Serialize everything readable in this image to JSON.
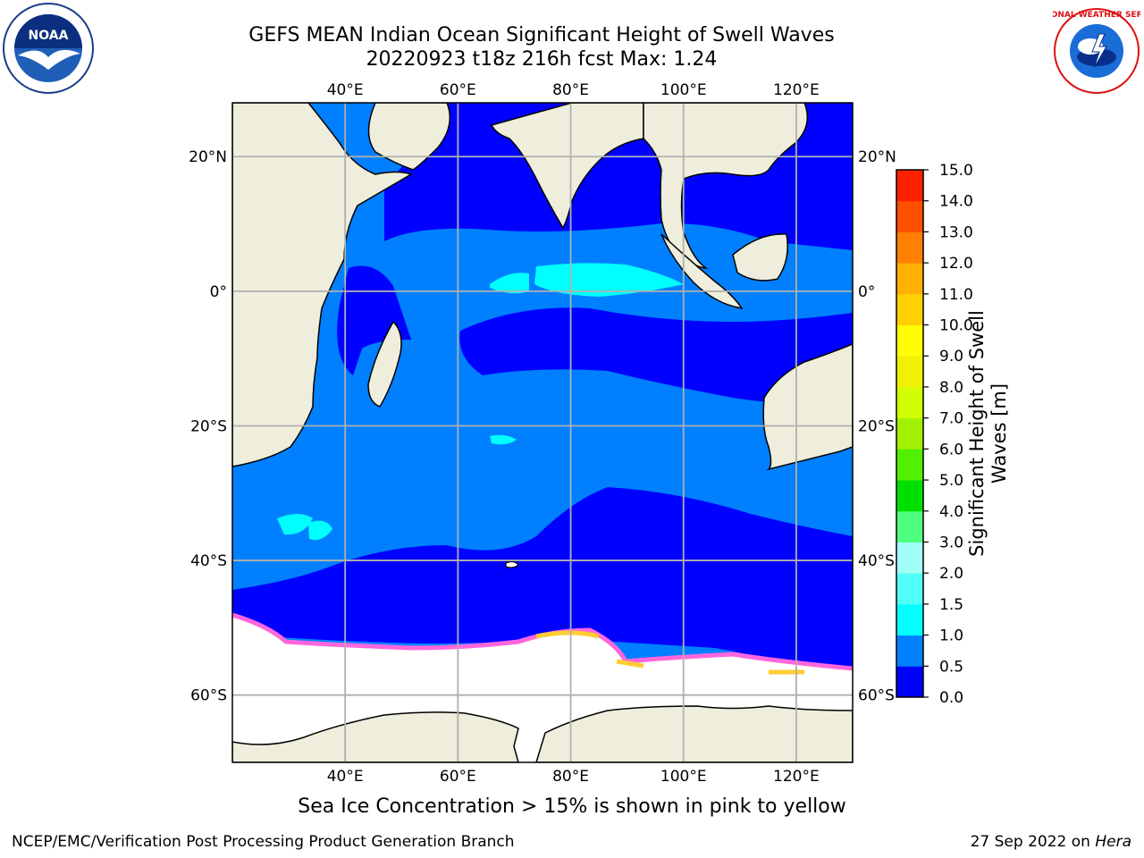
{
  "title_line1": "GEFS MEAN Indian Ocean Significant Height of Swell Waves",
  "title_line2": "20220923 t18z 216h fcst   Max: 1.24",
  "logos": {
    "left": {
      "icon": "noaa-logo",
      "text": "NOAA"
    },
    "right": {
      "icon": "national-weather-service-logo",
      "text": "NATIONAL WEATHER SERVICE"
    }
  },
  "map": {
    "lon_labels": [
      "40°E",
      "60°E",
      "80°E",
      "100°E",
      "120°E"
    ],
    "lat_labels": [
      "20°N",
      "0°",
      "20°S",
      "40°S",
      "60°S"
    ],
    "extent": {
      "lon": [
        20,
        130
      ],
      "lat": [
        -70,
        28
      ]
    },
    "colors": {
      "land": "#efeedc",
      "ocean_low": "#0000ff",
      "ocean_mid": "#0080ff",
      "ocean_high": "#00ffff",
      "ice": "#ffffff"
    }
  },
  "colorbar": {
    "label": "Significant Height of Swell Waves [m]",
    "ticks": [
      "0.0",
      "0.5",
      "1.0",
      "1.5",
      "2.0",
      "3.0",
      "4.0",
      "5.0",
      "6.0",
      "7.0",
      "8.0",
      "9.0",
      "10.0",
      "11.0",
      "12.0",
      "13.0",
      "14.0",
      "15.0"
    ],
    "colors": [
      "#0000ff",
      "#0080ff",
      "#00ffff",
      "#50fff7",
      "#a0fff7",
      "#50ff80",
      "#00e000",
      "#50f000",
      "#a0f000",
      "#d0ff00",
      "#f0f000",
      "#ffff00",
      "#ffd000",
      "#ffb000",
      "#ff8000",
      "#ff5000",
      "#ff2000"
    ]
  },
  "sea_ice_note": "Sea Ice Concentration > 15% is shown in pink to yellow",
  "footer_left": "NCEP/EMC/Verification Post Processing Product Generation Branch",
  "footer_right_prefix": "27 Sep 2022 on ",
  "footer_right_machine": "Hera"
}
